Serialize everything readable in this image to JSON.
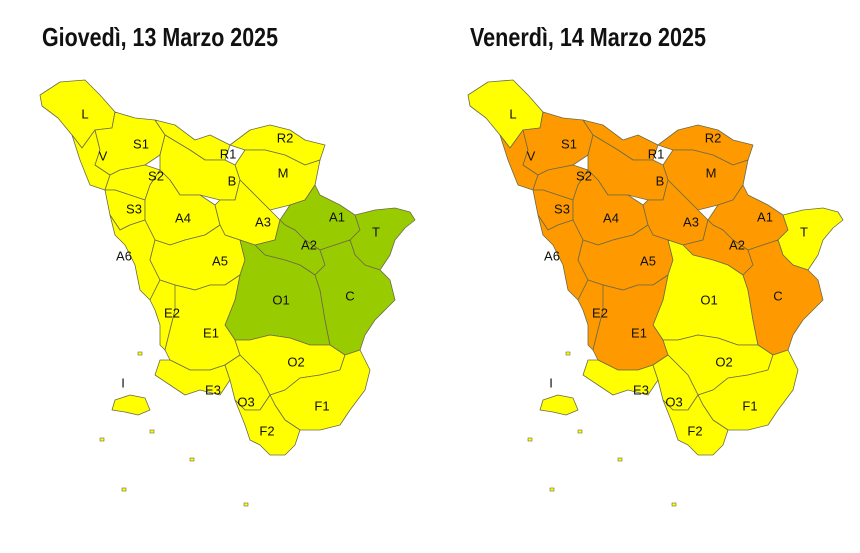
{
  "maps": [
    {
      "title": "Giovedì, 13 Marzo 2025",
      "zones": [
        {
          "label": "L",
          "color": "#ffff00"
        },
        {
          "label": "V",
          "color": "#ffff00"
        },
        {
          "label": "S1",
          "color": "#ffff00"
        },
        {
          "label": "R1",
          "color": "#ffff00"
        },
        {
          "label": "R2",
          "color": "#ffff00"
        },
        {
          "label": "M",
          "color": "#ffff00"
        },
        {
          "label": "B",
          "color": "#ffff00"
        },
        {
          "label": "S2",
          "color": "#ffff00"
        },
        {
          "label": "S3",
          "color": "#ffff00"
        },
        {
          "label": "A4",
          "color": "#ffff00"
        },
        {
          "label": "A3",
          "color": "#ffff00"
        },
        {
          "label": "A6",
          "color": "#ffff00"
        },
        {
          "label": "A5",
          "color": "#ffff00"
        },
        {
          "label": "A1",
          "color": "#99cc00"
        },
        {
          "label": "T",
          "color": "#99cc00"
        },
        {
          "label": "A2",
          "color": "#99cc00"
        },
        {
          "label": "O1",
          "color": "#99cc00"
        },
        {
          "label": "C",
          "color": "#99cc00"
        },
        {
          "label": "E2",
          "color": "#ffff00"
        },
        {
          "label": "E1",
          "color": "#ffff00"
        },
        {
          "label": "O2",
          "color": "#ffff00"
        },
        {
          "label": "E3",
          "color": "#ffff00"
        },
        {
          "label": "O3",
          "color": "#ffff00"
        },
        {
          "label": "F1",
          "color": "#ffff00"
        },
        {
          "label": "F2",
          "color": "#ffff00"
        },
        {
          "label": "I",
          "color": "#ffff00"
        }
      ]
    },
    {
      "title": "Venerdì, 14 Marzo 2025",
      "zones": [
        {
          "label": "L",
          "color": "#ffff00"
        },
        {
          "label": "V",
          "color": "#ff9900"
        },
        {
          "label": "S1",
          "color": "#ff9900"
        },
        {
          "label": "R1",
          "color": "#ff9900"
        },
        {
          "label": "R2",
          "color": "#ff9900"
        },
        {
          "label": "M",
          "color": "#ff9900"
        },
        {
          "label": "B",
          "color": "#ff9900"
        },
        {
          "label": "S2",
          "color": "#ff9900"
        },
        {
          "label": "S3",
          "color": "#ff9900"
        },
        {
          "label": "A4",
          "color": "#ff9900"
        },
        {
          "label": "A3",
          "color": "#ff9900"
        },
        {
          "label": "A6",
          "color": "#ff9900"
        },
        {
          "label": "A5",
          "color": "#ff9900"
        },
        {
          "label": "A1",
          "color": "#ff9900"
        },
        {
          "label": "T",
          "color": "#ffff00"
        },
        {
          "label": "A2",
          "color": "#ff9900"
        },
        {
          "label": "O1",
          "color": "#ffff00"
        },
        {
          "label": "C",
          "color": "#ff9900"
        },
        {
          "label": "E2",
          "color": "#ff9900"
        },
        {
          "label": "E1",
          "color": "#ff9900"
        },
        {
          "label": "O2",
          "color": "#ffff00"
        },
        {
          "label": "E3",
          "color": "#ffff00"
        },
        {
          "label": "O3",
          "color": "#ffff00"
        },
        {
          "label": "F1",
          "color": "#ffff00"
        },
        {
          "label": "F2",
          "color": "#ffff00"
        },
        {
          "label": "I",
          "color": "#ffff00"
        }
      ]
    }
  ]
}
